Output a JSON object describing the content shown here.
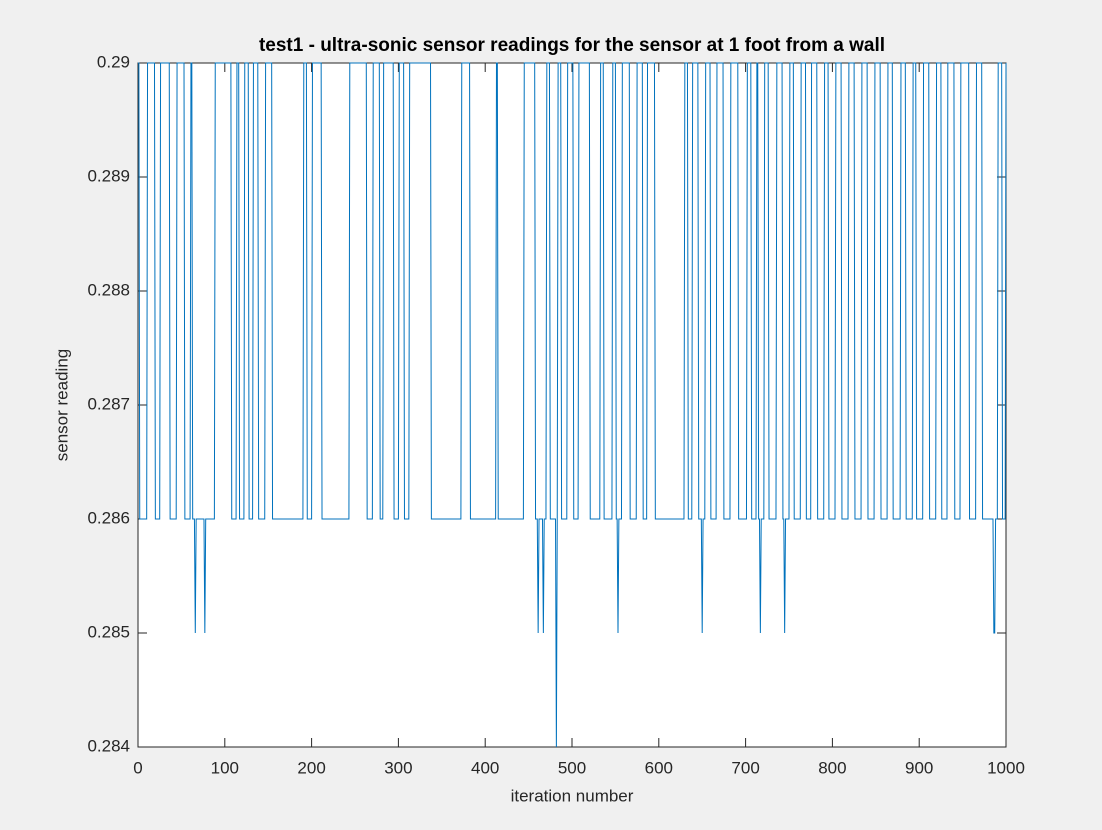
{
  "chart_data": {
    "type": "line",
    "title": "test1 - ultra-sonic sensor readings for the sensor at 1 foot from a wall",
    "x_label": "iteration number",
    "y_label": "sensor reading",
    "xlim": [
      0,
      1000
    ],
    "xticks": [
      0,
      100,
      200,
      300,
      400,
      500,
      600,
      700,
      800,
      900,
      1000
    ],
    "ylim": [
      0.284,
      0.29
    ],
    "yticks": [
      0.284,
      0.285,
      0.286,
      0.287,
      0.288,
      0.289,
      0.29
    ],
    "grid": false,
    "series": [
      {
        "color": "#0072bd",
        "x": [
          0,
          1,
          2,
          10,
          11,
          19,
          20,
          25,
          26,
          36,
          37,
          44,
          45,
          53,
          54,
          60,
          61,
          62,
          63,
          65,
          66,
          67,
          76,
          77,
          78,
          88,
          89,
          107,
          108,
          113,
          114,
          116,
          117,
          122,
          123,
          127,
          128,
          132,
          133,
          138,
          139,
          146,
          147,
          154,
          155,
          190,
          191,
          194,
          195,
          200,
          201,
          211,
          212,
          243,
          244,
          263,
          264,
          270,
          271,
          278,
          279,
          282,
          283,
          294,
          295,
          300,
          301,
          306,
          307,
          312,
          313,
          337,
          338,
          372,
          373,
          382,
          383,
          412,
          413,
          414,
          415,
          444,
          445,
          457,
          458,
          460,
          461,
          462,
          466,
          467,
          468,
          470,
          471,
          474,
          475,
          481,
          482,
          483,
          484,
          487,
          488,
          494,
          495,
          501,
          502,
          507,
          508,
          520,
          521,
          532,
          533,
          536,
          537,
          546,
          547,
          550,
          551,
          552,
          553,
          554,
          557,
          558,
          566,
          567,
          574,
          575,
          581,
          582,
          586,
          587,
          595,
          596,
          629,
          630,
          633,
          634,
          638,
          639,
          645,
          646,
          649,
          650,
          651,
          653,
          654,
          659,
          660,
          666,
          667,
          674,
          675,
          682,
          683,
          691,
          692,
          701,
          702,
          706,
          707,
          712,
          713,
          714,
          715,
          716,
          717,
          718,
          721,
          722,
          726,
          727,
          735,
          736,
          742,
          743,
          744,
          745,
          746,
          750,
          751,
          755,
          756,
          763,
          764,
          769,
          770,
          775,
          776,
          782,
          783,
          790,
          791,
          795,
          796,
          803,
          804,
          810,
          811,
          818,
          819,
          825,
          826,
          833,
          834,
          840,
          841,
          848,
          849,
          855,
          856,
          863,
          864,
          869,
          870,
          878,
          879,
          884,
          885,
          892,
          893,
          896,
          897,
          904,
          905,
          911,
          912,
          919,
          920,
          925,
          926,
          932,
          933,
          940,
          941,
          947,
          948,
          957,
          958,
          965,
          966,
          972,
          973,
          985,
          986,
          987,
          988,
          990,
          991,
          995,
          996,
          999,
          1000
        ],
        "values": [
          0.29,
          0.29,
          0.286,
          0.286,
          0.29,
          0.29,
          0.286,
          0.286,
          0.29,
          0.29,
          0.286,
          0.286,
          0.29,
          0.29,
          0.286,
          0.286,
          0.29,
          0.29,
          0.286,
          0.286,
          0.285,
          0.286,
          0.286,
          0.285,
          0.286,
          0.286,
          0.29,
          0.29,
          0.286,
          0.286,
          0.29,
          0.29,
          0.286,
          0.286,
          0.29,
          0.29,
          0.286,
          0.286,
          0.29,
          0.29,
          0.286,
          0.286,
          0.29,
          0.29,
          0.286,
          0.286,
          0.29,
          0.29,
          0.286,
          0.286,
          0.29,
          0.29,
          0.286,
          0.286,
          0.29,
          0.29,
          0.286,
          0.286,
          0.29,
          0.29,
          0.286,
          0.286,
          0.29,
          0.29,
          0.286,
          0.286,
          0.29,
          0.29,
          0.286,
          0.286,
          0.29,
          0.29,
          0.286,
          0.286,
          0.29,
          0.29,
          0.286,
          0.286,
          0.29,
          0.29,
          0.286,
          0.286,
          0.29,
          0.29,
          0.286,
          0.286,
          0.285,
          0.286,
          0.286,
          0.285,
          0.286,
          0.286,
          0.29,
          0.29,
          0.286,
          0.286,
          0.284,
          0.286,
          0.29,
          0.29,
          0.286,
          0.286,
          0.29,
          0.29,
          0.286,
          0.286,
          0.29,
          0.29,
          0.286,
          0.286,
          0.29,
          0.29,
          0.286,
          0.286,
          0.29,
          0.29,
          0.286,
          0.286,
          0.285,
          0.286,
          0.286,
          0.29,
          0.29,
          0.286,
          0.286,
          0.29,
          0.29,
          0.286,
          0.286,
          0.29,
          0.29,
          0.286,
          0.286,
          0.29,
          0.29,
          0.286,
          0.286,
          0.29,
          0.29,
          0.286,
          0.286,
          0.285,
          0.286,
          0.286,
          0.29,
          0.29,
          0.286,
          0.286,
          0.29,
          0.29,
          0.286,
          0.286,
          0.29,
          0.29,
          0.286,
          0.286,
          0.29,
          0.29,
          0.286,
          0.286,
          0.29,
          0.29,
          0.286,
          0.286,
          0.285,
          0.286,
          0.286,
          0.29,
          0.29,
          0.286,
          0.286,
          0.29,
          0.29,
          0.286,
          0.286,
          0.285,
          0.286,
          0.286,
          0.29,
          0.29,
          0.286,
          0.286,
          0.29,
          0.29,
          0.286,
          0.286,
          0.29,
          0.29,
          0.286,
          0.286,
          0.29,
          0.29,
          0.286,
          0.286,
          0.29,
          0.29,
          0.286,
          0.286,
          0.29,
          0.29,
          0.286,
          0.286,
          0.29,
          0.29,
          0.286,
          0.286,
          0.29,
          0.29,
          0.286,
          0.286,
          0.29,
          0.29,
          0.286,
          0.286,
          0.29,
          0.29,
          0.286,
          0.286,
          0.29,
          0.29,
          0.286,
          0.286,
          0.29,
          0.29,
          0.286,
          0.286,
          0.29,
          0.29,
          0.286,
          0.286,
          0.29,
          0.29,
          0.286,
          0.286,
          0.29,
          0.29,
          0.286,
          0.286,
          0.29,
          0.29,
          0.286,
          0.286,
          0.285,
          0.285,
          0.286,
          0.286,
          0.29,
          0.29,
          0.286,
          0.286,
          0.29
        ]
      }
    ]
  }
}
